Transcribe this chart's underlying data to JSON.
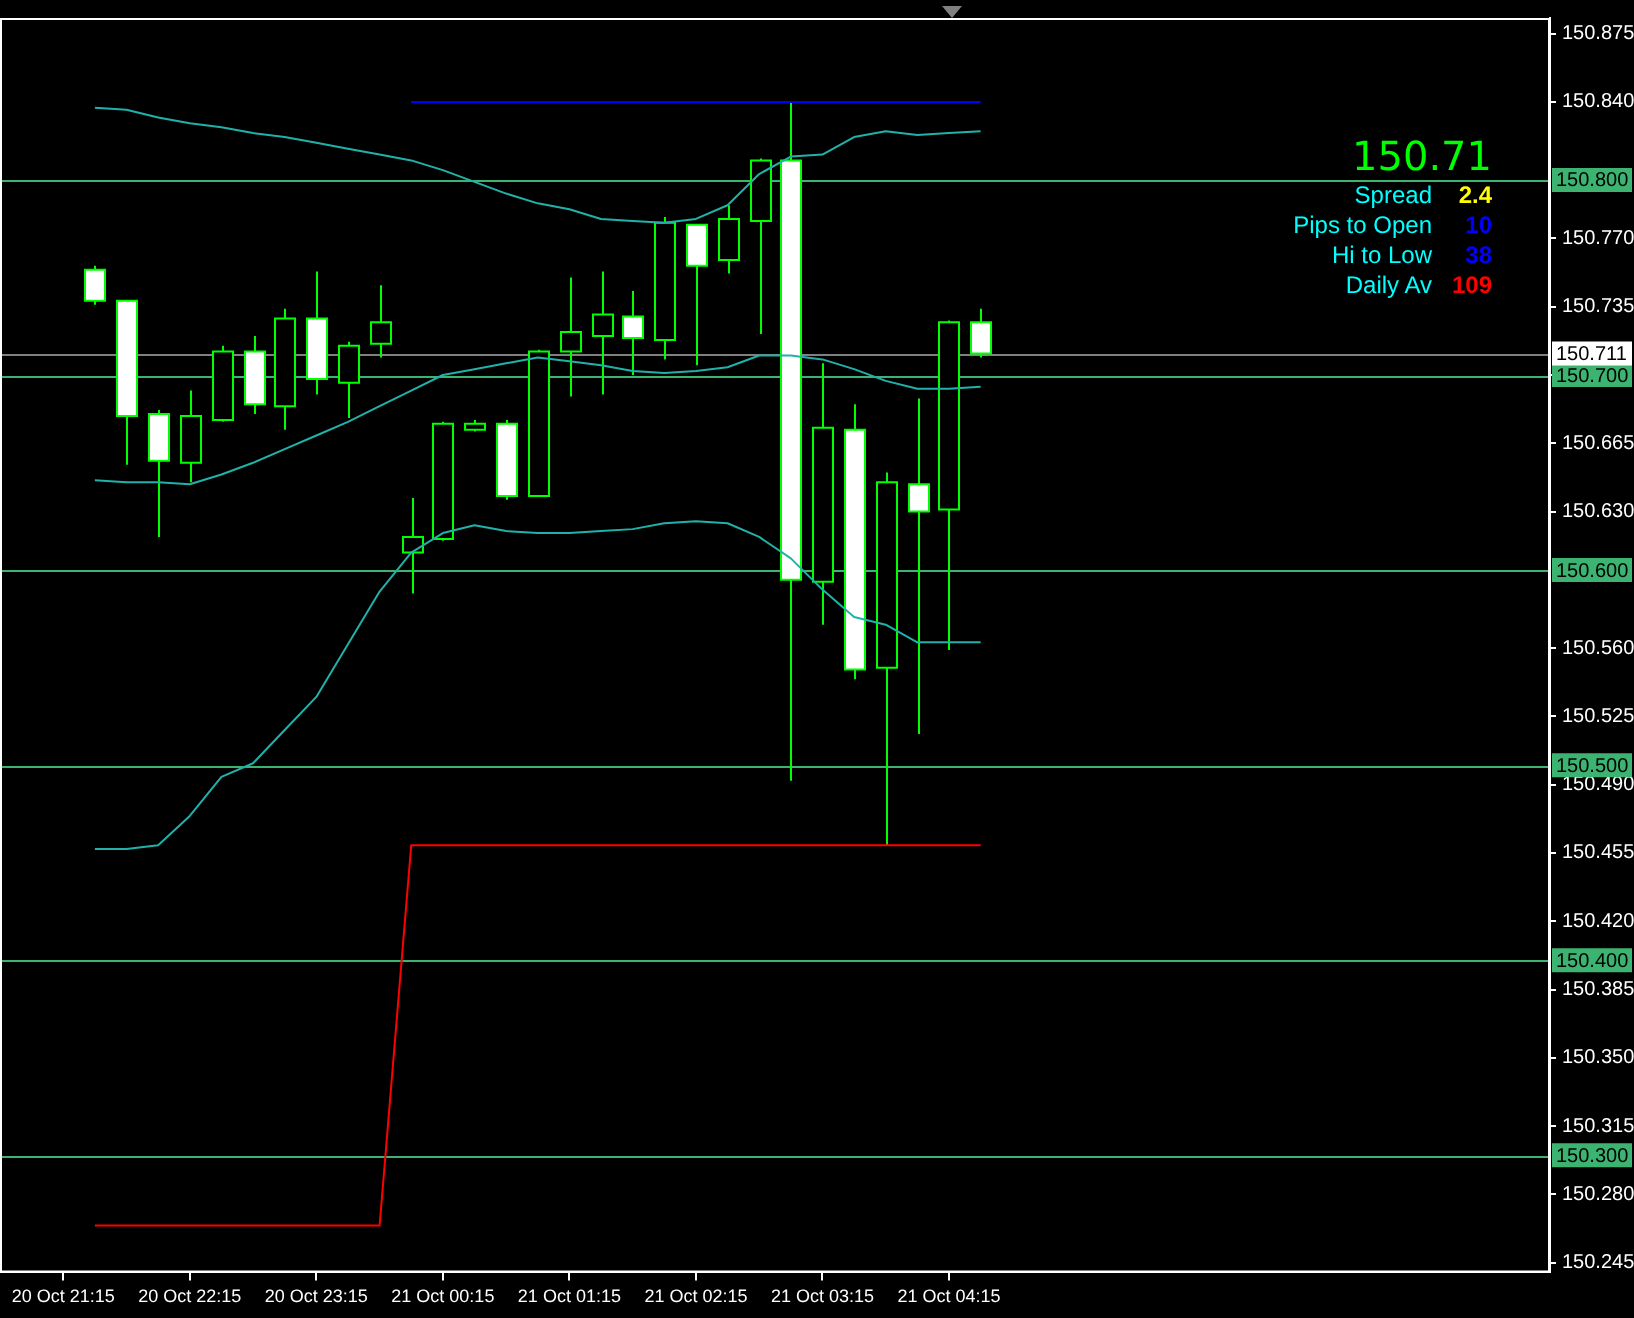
{
  "chart_data": {
    "type": "candlestick",
    "categories": [
      "20 Oct 21:15",
      null,
      null,
      null,
      "20 Oct 22:15",
      null,
      null,
      null,
      "20 Oct 23:15",
      null,
      null,
      null,
      "21 Oct 00:15",
      null,
      null,
      null,
      "21 Oct 01:15",
      null,
      null,
      null,
      "21 Oct 02:15",
      null,
      null,
      null,
      "21 Oct 03:15",
      null,
      null,
      null,
      "21 Oct 04:15",
      null
    ],
    "ohlc": [
      null,
      [
        150.754,
        150.756,
        150.736,
        150.738
      ],
      [
        150.738,
        150.738,
        150.654,
        150.679
      ],
      [
        150.68,
        150.682,
        150.617,
        150.656
      ],
      [
        150.655,
        150.692,
        150.645,
        150.679
      ],
      [
        150.677,
        150.715,
        150.676,
        150.712
      ],
      [
        150.712,
        150.72,
        150.68,
        150.685
      ],
      [
        150.684,
        150.734,
        150.672,
        150.729
      ],
      [
        150.729,
        150.753,
        150.69,
        150.698
      ],
      [
        150.696,
        150.717,
        150.678,
        150.715
      ],
      [
        150.716,
        150.746,
        150.709,
        150.727
      ],
      [
        150.609,
        150.637,
        150.588,
        150.617
      ],
      [
        150.616,
        150.676,
        150.615,
        150.675
      ],
      [
        150.672,
        150.677,
        150.671,
        150.675
      ],
      [
        150.675,
        150.677,
        150.636,
        150.638
      ],
      [
        150.638,
        150.713,
        150.638,
        150.712
      ],
      [
        150.712,
        150.75,
        150.689,
        150.722
      ],
      [
        150.72,
        150.753,
        150.69,
        150.731
      ],
      [
        150.73,
        150.743,
        150.7,
        150.719
      ],
      [
        150.718,
        150.781,
        150.708,
        150.778
      ],
      [
        150.777,
        150.777,
        150.705,
        150.756
      ],
      [
        150.759,
        150.787,
        150.752,
        150.78
      ],
      [
        150.779,
        150.811,
        150.721,
        150.81
      ],
      [
        150.81,
        150.84,
        150.492,
        150.595
      ],
      [
        150.594,
        150.706,
        150.572,
        150.673
      ],
      [
        150.672,
        150.685,
        150.544,
        150.549
      ],
      [
        150.55,
        150.65,
        150.459,
        150.645
      ],
      [
        150.644,
        150.688,
        150.516,
        150.63
      ],
      [
        150.631,
        150.728,
        150.559,
        150.727
      ],
      [
        150.727,
        150.734,
        150.709,
        150.711
      ]
    ],
    "series": [
      {
        "type": "line",
        "color": "#20b2aa",
        "values": [
          null,
          150.837,
          150.836,
          150.832,
          150.829,
          150.827,
          150.824,
          150.822,
          150.819,
          150.816,
          150.813,
          150.81,
          150.805,
          150.799,
          150.793,
          150.788,
          150.785,
          150.78,
          150.779,
          150.778,
          150.78,
          150.787,
          150.803,
          150.812,
          150.813,
          150.822,
          150.825,
          150.823,
          150.824,
          150.825
        ]
      },
      {
        "type": "line",
        "color": "#20b2aa",
        "values": [
          null,
          150.646,
          150.645,
          150.645,
          150.644,
          150.649,
          150.655,
          150.662,
          150.669,
          150.676,
          150.684,
          150.692,
          150.7,
          150.703,
          150.706,
          150.709,
          150.707,
          150.705,
          150.702,
          150.701,
          150.702,
          150.704,
          150.71,
          150.71,
          150.708,
          150.703,
          150.697,
          150.693,
          150.693,
          150.694
        ]
      },
      {
        "type": "line",
        "color": "#20b2aa",
        "values": [
          null,
          150.457,
          150.457,
          150.459,
          150.474,
          150.494,
          150.501,
          150.518,
          150.535,
          150.562,
          150.589,
          150.609,
          150.619,
          150.623,
          150.62,
          150.619,
          150.619,
          150.62,
          150.621,
          150.624,
          150.625,
          150.624,
          150.617,
          150.606,
          150.59,
          150.576,
          150.572,
          150.563,
          150.563,
          150.563
        ]
      },
      {
        "type": "line",
        "color": "#0000ff",
        "values": [
          null,
          null,
          null,
          null,
          null,
          null,
          null,
          null,
          null,
          null,
          null,
          150.84,
          150.84,
          150.84,
          150.84,
          150.84,
          150.84,
          150.84,
          150.84,
          150.84,
          150.84,
          150.84,
          150.84,
          150.84,
          150.84,
          150.84,
          150.84,
          150.84,
          150.84,
          150.84
        ]
      },
      {
        "type": "line",
        "color": "#ff0000",
        "values": [
          null,
          150.264,
          150.264,
          150.264,
          150.264,
          150.264,
          150.264,
          150.264,
          150.264,
          150.264,
          150.264,
          150.459,
          150.459,
          150.459,
          150.459,
          150.459,
          150.459,
          150.459,
          150.459,
          150.459,
          150.459,
          150.459,
          150.459,
          150.459,
          150.459,
          150.459,
          150.459,
          150.459,
          150.459,
          150.459
        ]
      }
    ],
    "ylim": [
      150.24,
      150.883
    ],
    "yticks": [
      150.875,
      {
        "value": 150.84,
        "label": "150.840"
      },
      {
        "value": 150.77,
        "label": "150.770"
      },
      150.735,
      {
        "value": 150.7,
        "label": null
      },
      150.665,
      {
        "value": 150.63,
        "label": "150.630"
      },
      {
        "value": 150.56,
        "label": "150.560"
      },
      150.525,
      {
        "value": 150.49,
        "label": "150.490"
      },
      150.455,
      {
        "value": 150.42,
        "label": "150.420"
      },
      150.385,
      {
        "value": 150.35,
        "label": "150.350"
      },
      150.315,
      {
        "value": 150.28,
        "label": "150.280"
      },
      150.245
    ],
    "ref_lines": [
      {
        "axis": "y",
        "value": 150.8,
        "label": "150.800",
        "color": "#3cb371"
      },
      {
        "axis": "y",
        "value": 150.7,
        "label": "150.700",
        "color": "#3cb371"
      },
      {
        "axis": "y",
        "value": 150.6,
        "label": "150.600",
        "color": "#3cb371"
      },
      {
        "axis": "y",
        "value": 150.5,
        "label": "150.500",
        "color": "#3cb371"
      },
      {
        "axis": "y",
        "value": 150.4,
        "label": "150.400",
        "color": "#3cb371"
      },
      {
        "axis": "y",
        "value": 150.3,
        "label": "150.300",
        "color": "#3cb371"
      },
      {
        "axis": "y",
        "value": 150.711,
        "label": "150.711",
        "color": "#808080"
      }
    ],
    "annotations": [
      "150.71",
      "Spread 2.4",
      "Pips to Open 10",
      "Hi to Low 38",
      "Daily Av 109"
    ],
    "grid": false,
    "legend": false,
    "marker": "none"
  }
}
